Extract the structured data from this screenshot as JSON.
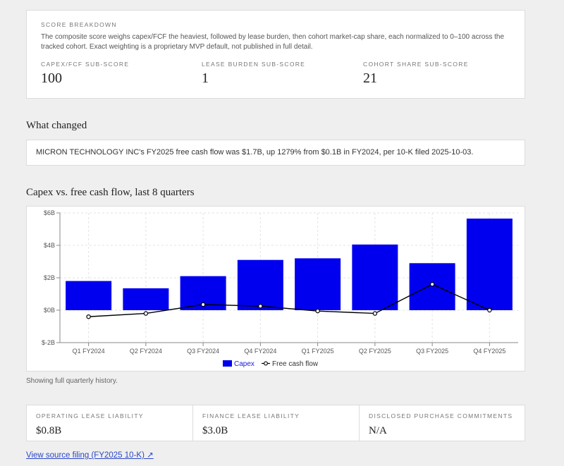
{
  "score_breakdown": {
    "heading": "SCORE BREAKDOWN",
    "description": "The composite score weighs capex/FCF the heaviest, followed by lease burden, then cohort market-cap share, each normalized to 0–100 across the tracked cohort. Exact weighting is a proprietary MVP default, not published in full detail.",
    "subscores": [
      {
        "label": "CAPEX/FCF SUB-SCORE",
        "value": "100"
      },
      {
        "label": "LEASE BURDEN SUB-SCORE",
        "value": "1"
      },
      {
        "label": "COHORT SHARE SUB-SCORE",
        "value": "21"
      }
    ]
  },
  "what_changed": {
    "heading": "What changed",
    "text": "MICRON TECHNOLOGY INC's FY2025 free cash flow was $1.7B, up 1279% from $0.1B in FY2024, per 10-K filed 2025-10-03."
  },
  "chart_section": {
    "heading": "Capex vs. free cash flow, last 8 quarters",
    "note": "Showing full quarterly history."
  },
  "chart_data": {
    "type": "bar",
    "categories": [
      "Q1 FY2024",
      "Q2 FY2024",
      "Q3 FY2024",
      "Q4 FY2024",
      "Q1 FY2025",
      "Q2 FY2025",
      "Q3 FY2025",
      "Q4 FY2025"
    ],
    "series": [
      {
        "name": "Capex",
        "type": "bar",
        "color": "#0000ee",
        "values": [
          1.8,
          1.35,
          2.1,
          3.1,
          3.2,
          4.05,
          2.9,
          5.65
        ]
      },
      {
        "name": "Free cash flow",
        "type": "line",
        "color": "#000000",
        "values": [
          -0.4,
          -0.2,
          0.35,
          0.25,
          -0.05,
          -0.2,
          1.6,
          0.0
        ]
      }
    ],
    "y_ticks": [
      "$6B",
      "$4B",
      "$2B",
      "$0B",
      "$-2B"
    ],
    "y_tick_values": [
      6,
      4,
      2,
      0,
      -2
    ],
    "ylim": [
      -2,
      6
    ],
    "grid": true,
    "legend_position": "bottom"
  },
  "lease": [
    {
      "label": "OPERATING LEASE LIABILITY",
      "value": "$0.8B"
    },
    {
      "label": "FINANCE LEASE LIABILITY",
      "value": "$3.0B"
    },
    {
      "label": "DISCLOSED PURCHASE COMMITMENTS",
      "value": "N/A"
    }
  ],
  "source_link": "View source filing (FY2025 10-K) ↗"
}
